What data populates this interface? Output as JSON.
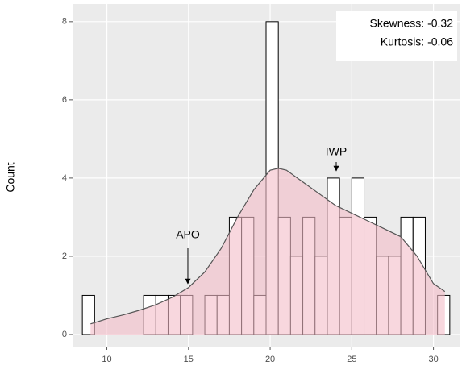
{
  "chart_data": {
    "type": "histogram",
    "bins": [
      8.5,
      9.25,
      10,
      10.75,
      11.5,
      12.25,
      13,
      13.75,
      14.5,
      15.25,
      16,
      16.75,
      17.5,
      18.25,
      19,
      19.75,
      20.5,
      21.25,
      22,
      22.75,
      23.5,
      24.25,
      25,
      25.75,
      26.5,
      27.25,
      28,
      28.75,
      29.5,
      30.25,
      31
    ],
    "counts": [
      1,
      0,
      0,
      0,
      0,
      1,
      1,
      1,
      1,
      0,
      1,
      1,
      3,
      3,
      1,
      8,
      3,
      2,
      3,
      2,
      4,
      3,
      4,
      3,
      2,
      2,
      3,
      3,
      0,
      1
    ],
    "density": {
      "x": [
        9,
        10,
        11,
        12,
        13,
        14,
        15,
        16,
        17,
        18,
        19,
        20,
        20.5,
        21,
        22,
        23,
        24,
        25,
        26,
        27,
        28,
        29,
        30,
        30.7
      ],
      "y": [
        0.27,
        0.4,
        0.5,
        0.62,
        0.76,
        0.95,
        1.2,
        1.6,
        2.2,
        3.0,
        3.7,
        4.2,
        4.25,
        4.2,
        3.9,
        3.6,
        3.3,
        3.1,
        2.9,
        2.7,
        2.5,
        2.0,
        1.3,
        1.1
      ],
      "color": "#f4bcc8"
    },
    "bar_color": "#ffffff",
    "ylabel": "Count",
    "annotations": [
      "APO",
      "IWP"
    ],
    "stats": [
      "Skewness: -0.32",
      "Kurtosis: -0.06"
    ],
    "xlim": [
      7.9,
      31.6
    ],
    "ylim": [
      -0.31,
      8.45
    ],
    "xticks": [
      10,
      15,
      20,
      25,
      30
    ],
    "yticks": [
      0,
      2,
      4,
      6,
      8
    ],
    "grid": true
  }
}
